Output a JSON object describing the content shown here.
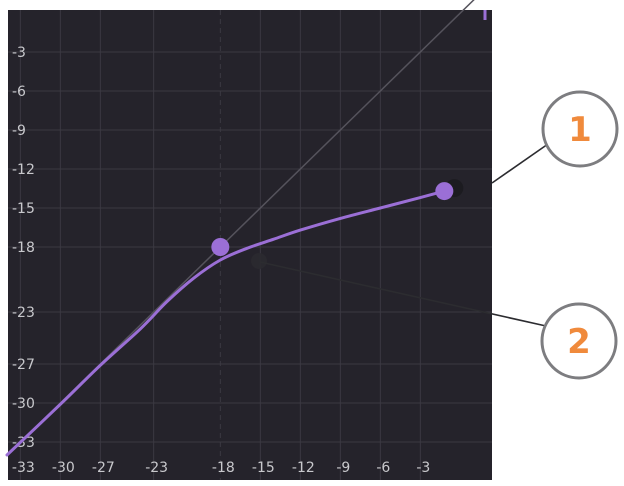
{
  "panel": {
    "background": "#25232b",
    "grid_color": "#3b3942",
    "accent": "#9b6fd6"
  },
  "chart_data": {
    "type": "line",
    "title": "",
    "xlabel": "",
    "ylabel": "",
    "x_ticks": [
      -33,
      -30,
      -27,
      -23,
      -18,
      -15,
      -12,
      -9,
      -6,
      -3
    ],
    "y_ticks": [
      -3,
      -6,
      -9,
      -12,
      -15,
      -18,
      -23,
      -27,
      -30,
      -33
    ],
    "xlim": [
      -34,
      2
    ],
    "ylim": [
      -36,
      0
    ],
    "grid": true,
    "series": [
      {
        "role": "transfer-curve",
        "color": "#9b6fd6",
        "x": [
          -34,
          -30,
          -27,
          -24,
          -22,
          -20,
          -18,
          -16,
          -14,
          -12,
          -9,
          -6,
          -3,
          -1.2
        ],
        "y": [
          -34,
          -30.1,
          -27.1,
          -24.3,
          -22.2,
          -20.4,
          -19,
          -18.1,
          -17.4,
          -16.7,
          -15.8,
          -15.0,
          -14.2,
          -13.7
        ]
      },
      {
        "role": "unity-line",
        "color": "#55535c",
        "x": [
          -34,
          2
        ],
        "y": [
          -34,
          2
        ]
      }
    ],
    "points": [
      {
        "role": "threshold-handle",
        "x": -18,
        "y": -18
      },
      {
        "role": "ceiling-handle",
        "x": -1.2,
        "y": -13.7
      }
    ]
  },
  "callouts": [
    {
      "label": "1",
      "color": "#f08a3c"
    },
    {
      "label": "2",
      "color": "#f08a3c"
    }
  ]
}
